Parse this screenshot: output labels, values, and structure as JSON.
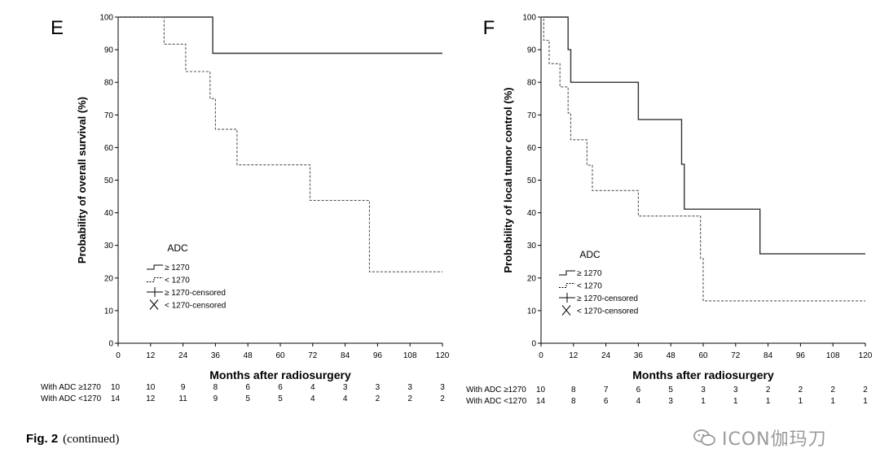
{
  "chart_data": [
    {
      "panel_label": "E",
      "type": "line",
      "step": true,
      "ylabel": "Probability of overall survival (%)",
      "xlabel": "Months after radiosurgery",
      "xlim": [
        0,
        120
      ],
      "ylim": [
        0,
        100
      ],
      "x_ticks": [
        "0",
        "12",
        "24",
        "36",
        "48",
        "60",
        "72",
        "84",
        "96",
        "108",
        "120"
      ],
      "y_ticks": [
        "0",
        "10",
        "20",
        "30",
        "40",
        "50",
        "60",
        "70",
        "80",
        "90",
        "100"
      ],
      "grid": false,
      "legend": {
        "title": "ADC",
        "position": "bottom-left",
        "entries": [
          "≥ 1270",
          "< 1270",
          "≥ 1270-censored",
          "< 1270-censored"
        ]
      },
      "series": [
        {
          "name": "≥ 1270",
          "style": "solid",
          "x": [
            0,
            35,
            35,
            120
          ],
          "y": [
            100,
            100,
            88.9,
            88.9
          ]
        },
        {
          "name": "< 1270",
          "style": "dashed",
          "x": [
            0,
            17,
            17,
            25,
            25,
            34,
            34,
            36,
            36,
            44,
            44,
            71,
            71,
            93,
            93,
            120
          ],
          "y": [
            100,
            100,
            91.7,
            91.7,
            83.3,
            83.3,
            75,
            75,
            65.6,
            65.6,
            54.7,
            54.7,
            43.8,
            43.8,
            21.9,
            21.9
          ]
        }
      ],
      "risk_table": {
        "rows": [
          {
            "label": "With ADC ≥1270",
            "values": [
              "10",
              "10",
              "9",
              "8",
              "6",
              "6",
              "4",
              "3",
              "3",
              "3",
              "3"
            ]
          },
          {
            "label": "With ADC <1270",
            "values": [
              "14",
              "12",
              "11",
              "9",
              "5",
              "5",
              "4",
              "4",
              "2",
              "2",
              "2"
            ]
          }
        ]
      }
    },
    {
      "panel_label": "F",
      "type": "line",
      "step": true,
      "ylabel": "Probability of local tumor control (%)",
      "xlabel": "Months after radiosurgery",
      "xlim": [
        0,
        120
      ],
      "ylim": [
        0,
        100
      ],
      "x_ticks": [
        "0",
        "12",
        "24",
        "36",
        "48",
        "60",
        "72",
        "84",
        "96",
        "108",
        "120"
      ],
      "y_ticks": [
        "0",
        "10",
        "20",
        "30",
        "40",
        "50",
        "60",
        "70",
        "80",
        "90",
        "100"
      ],
      "grid": false,
      "legend": {
        "title": "ADC",
        "position": "bottom-left",
        "entries": [
          "≥ 1270",
          "< 1270",
          "≥ 1270-censored",
          "< 1270-censored"
        ]
      },
      "series": [
        {
          "name": "≥ 1270",
          "style": "solid",
          "x": [
            0,
            10,
            10,
            11,
            11,
            36,
            36,
            52,
            52,
            53,
            53,
            81,
            81,
            120
          ],
          "y": [
            100,
            100,
            90,
            90,
            80,
            80,
            68.6,
            68.6,
            54.9,
            54.9,
            41.1,
            41.1,
            27.4,
            27.4
          ]
        },
        {
          "name": "< 1270",
          "style": "dashed",
          "x": [
            0,
            1,
            1,
            3,
            3,
            7,
            7,
            10,
            10,
            11,
            11,
            17,
            17,
            19,
            19,
            36,
            36,
            59,
            59,
            60,
            60,
            120
          ],
          "y": [
            100,
            100,
            92.9,
            92.9,
            85.7,
            85.7,
            78.6,
            78.6,
            70.6,
            70.6,
            62.4,
            62.4,
            54.6,
            54.6,
            46.8,
            46.8,
            39,
            39,
            26,
            26,
            13,
            13
          ]
        }
      ],
      "risk_table": {
        "rows": [
          {
            "label": "With ADC ≥1270",
            "values": [
              "10",
              "8",
              "7",
              "6",
              "5",
              "3",
              "3",
              "2",
              "2",
              "2",
              "2"
            ]
          },
          {
            "label": "With ADC <1270",
            "values": [
              "14",
              "8",
              "6",
              "4",
              "3",
              "1",
              "1",
              "1",
              "1",
              "1",
              "1"
            ]
          }
        ]
      }
    }
  ],
  "caption": {
    "fig_label": "Fig. 2",
    "text": "(continued)"
  },
  "watermark": {
    "text": "ICON伽玛刀",
    "icon": "chat-bubbles-icon"
  }
}
